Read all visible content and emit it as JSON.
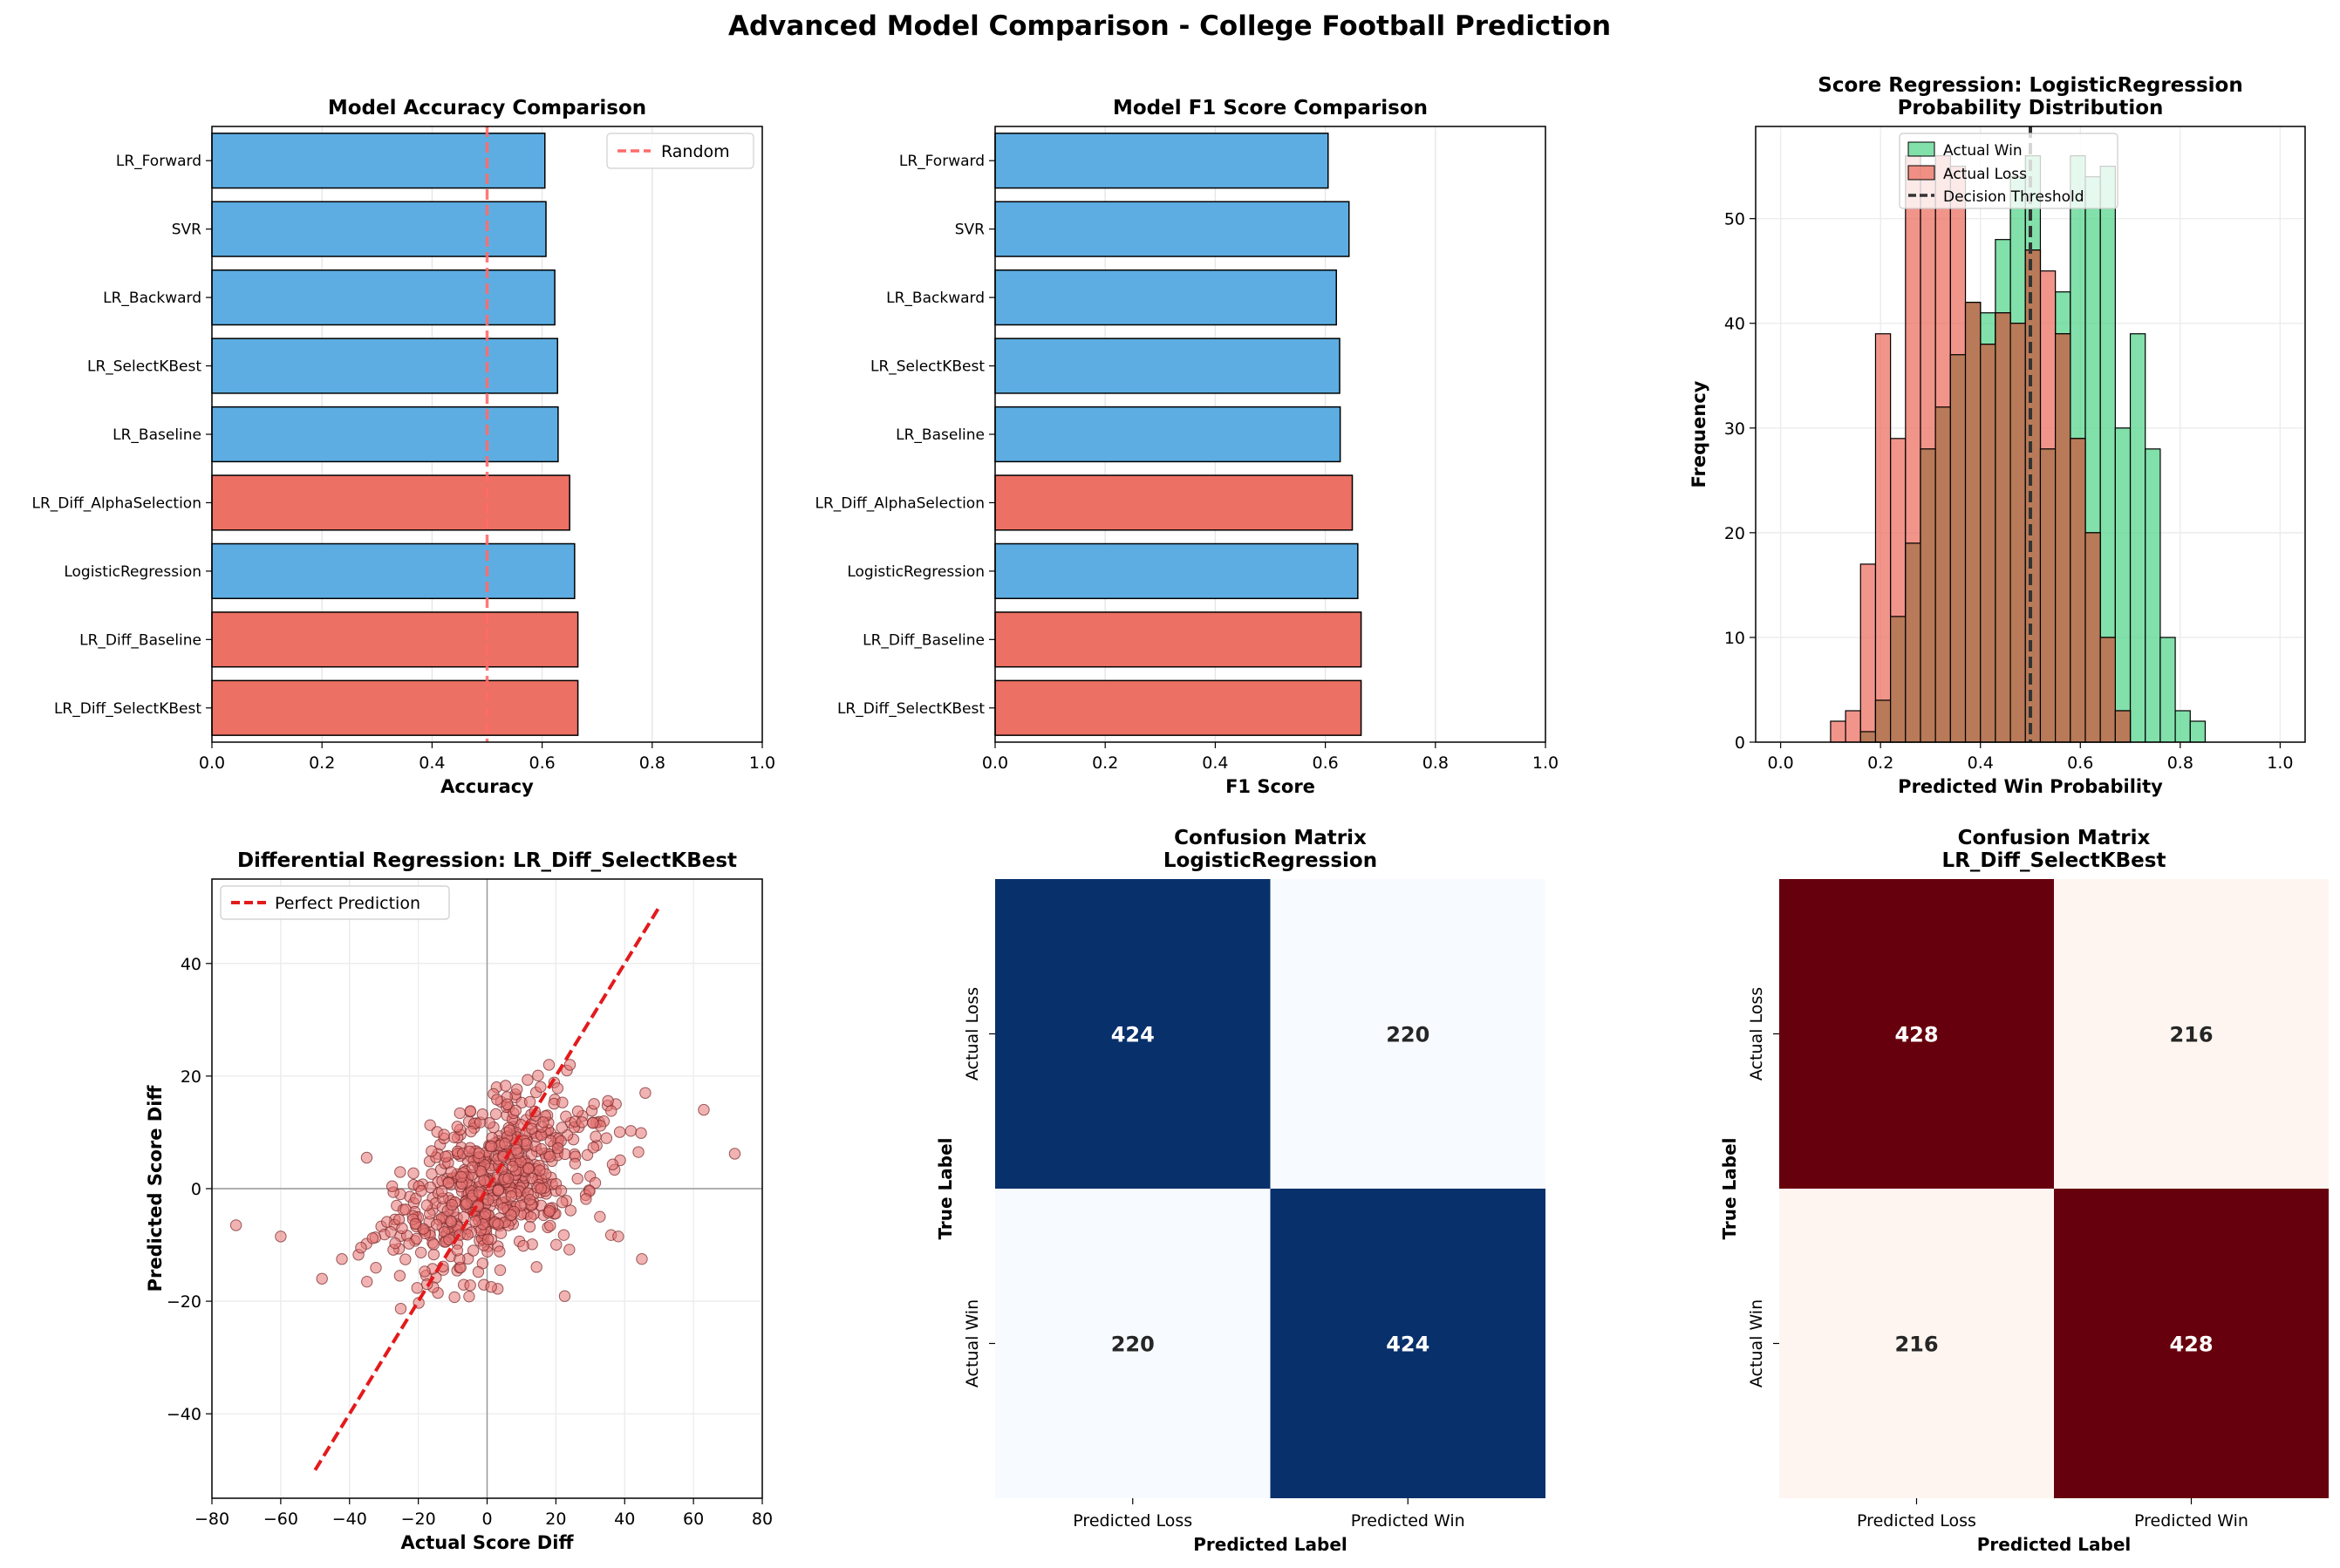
{
  "figure_title": "Advanced Model Comparison - College Football Prediction",
  "colors": {
    "lr_bar": "#5DADE2",
    "diff_bar": "#EC7063",
    "random_line": "#FF6B6B",
    "actual_win": "#58D68D",
    "actual_loss": "#EC7063",
    "overlap": "#B87A58",
    "scatter_point": "#E57373",
    "perfect_line": "#E31A1C",
    "blues_dark": "#08306B",
    "blues_light": "#F7FBFF",
    "reds_dark": "#67000D",
    "reds_light": "#FFF5F0"
  },
  "chart_data": [
    {
      "id": "accuracy",
      "type": "bar",
      "orientation": "horizontal",
      "title": "Model Accuracy Comparison",
      "xlabel": "Accuracy",
      "ylabel": "",
      "xlim": [
        0,
        1
      ],
      "xticks": [
        "0.0",
        "0.2",
        "0.4",
        "0.6",
        "0.8",
        "1.0"
      ],
      "grid": "x",
      "legend": {
        "position": "top-right",
        "entries": [
          "Random"
        ]
      },
      "reference_line": {
        "value": 0.5,
        "label": "Random"
      },
      "categories": [
        "LR_Forward",
        "SVR",
        "LR_Backward",
        "LR_SelectKBest",
        "LR_Baseline",
        "LR_Diff_AlphaSelection",
        "LogisticRegression",
        "LR_Diff_Baseline",
        "LR_Diff_SelectKBest"
      ],
      "values": [
        0.605,
        0.607,
        0.623,
        0.628,
        0.629,
        0.65,
        0.659,
        0.665,
        0.665
      ],
      "bar_groups": [
        "lr",
        "lr",
        "lr",
        "lr",
        "lr",
        "diff",
        "lr",
        "diff",
        "diff"
      ]
    },
    {
      "id": "f1",
      "type": "bar",
      "orientation": "horizontal",
      "title": "Model F1 Score Comparison",
      "xlabel": "F1 Score",
      "ylabel": "",
      "xlim": [
        0,
        1
      ],
      "xticks": [
        "0.0",
        "0.2",
        "0.4",
        "0.6",
        "0.8",
        "1.0"
      ],
      "grid": "x",
      "categories": [
        "LR_Forward",
        "SVR",
        "LR_Backward",
        "LR_SelectKBest",
        "LR_Baseline",
        "LR_Diff_AlphaSelection",
        "LogisticRegression",
        "LR_Diff_Baseline",
        "LR_Diff_SelectKBest"
      ],
      "values": [
        0.605,
        0.643,
        0.62,
        0.626,
        0.627,
        0.649,
        0.659,
        0.665,
        0.665
      ],
      "bar_groups": [
        "lr",
        "lr",
        "lr",
        "lr",
        "lr",
        "diff",
        "lr",
        "diff",
        "diff"
      ]
    },
    {
      "id": "hist",
      "type": "histogram",
      "title": "Score Regression: LogisticRegression",
      "subtitle": "Probability Distribution",
      "xlabel": "Predicted Win Probability",
      "ylabel": "Frequency",
      "xlim": [
        -0.05,
        1.05
      ],
      "ylim": [
        0,
        58.8
      ],
      "xticks": [
        "0.0",
        "0.2",
        "0.4",
        "0.6",
        "0.8",
        "1.0"
      ],
      "yticks": [
        "0",
        "10",
        "20",
        "30",
        "40",
        "50"
      ],
      "grid": "both",
      "legend": {
        "position": "top-center",
        "entries": [
          "Actual Win",
          "Actual Loss",
          "Decision Threshold"
        ]
      },
      "threshold": 0.5,
      "bin_start": 0.1,
      "bin_width": 0.03,
      "series": [
        {
          "name": "Actual Win",
          "values": [
            0,
            0,
            1,
            4,
            12,
            19,
            28,
            32,
            37,
            42,
            41,
            48,
            54,
            56,
            28,
            43,
            56,
            54,
            55,
            30,
            39,
            28,
            10,
            3,
            2
          ]
        },
        {
          "name": "Actual Loss",
          "values": [
            2,
            3,
            17,
            39,
            29,
            56,
            55,
            56,
            55,
            42,
            38,
            41,
            40,
            47,
            45,
            39,
            29,
            20,
            10,
            3,
            0,
            0,
            0,
            0,
            0
          ]
        }
      ]
    },
    {
      "id": "scatter",
      "type": "scatter",
      "title": "Differential Regression: LR_Diff_SelectKBest",
      "xlabel": "Actual Score Diff",
      "ylabel": "Predicted Score Diff",
      "xlim": [
        -80,
        80
      ],
      "ylim": [
        -55,
        55
      ],
      "xticks": [
        "−80",
        "−60",
        "−40",
        "−20",
        "0",
        "20",
        "40",
        "60",
        "80"
      ],
      "yticks": [
        "−40",
        "−20",
        "0",
        "20",
        "40"
      ],
      "grid": "both",
      "legend": {
        "position": "top-left",
        "entries": [
          "Perfect Prediction"
        ]
      },
      "reference_line": {
        "from": [
          -50,
          -50
        ],
        "to": [
          50,
          50
        ],
        "label": "Perfect Prediction"
      },
      "point_count": 644,
      "seed": 7,
      "outliers": [
        [
          -73,
          -6.5
        ],
        [
          -60,
          -8.5
        ],
        [
          72,
          6.2
        ],
        [
          63,
          14
        ],
        [
          46,
          17
        ],
        [
          45,
          -12.5
        ],
        [
          -48,
          -16
        ],
        [
          44,
          6.5
        ],
        [
          -35,
          5.5
        ],
        [
          18,
          22
        ]
      ]
    },
    {
      "id": "cm_lr",
      "type": "heatmap",
      "title": "Confusion Matrix",
      "subtitle": "LogisticRegression",
      "xlabel": "Predicted Label",
      "ylabel": "True Label",
      "xticklabels": [
        "Predicted Loss",
        "Predicted Win"
      ],
      "yticklabels": [
        "Actual Loss",
        "Actual Win"
      ],
      "colormap": "blues",
      "matrix": [
        [
          424,
          220
        ],
        [
          220,
          424
        ]
      ],
      "labels": [
        [
          "424",
          "220"
        ],
        [
          "220",
          "424"
        ]
      ]
    },
    {
      "id": "cm_diff",
      "type": "heatmap",
      "title": "Confusion Matrix",
      "subtitle": "LR_Diff_SelectKBest",
      "xlabel": "Predicted Label",
      "ylabel": "True Label",
      "xticklabels": [
        "Predicted Loss",
        "Predicted Win"
      ],
      "yticklabels": [
        "Actual Loss",
        "Actual Win"
      ],
      "colormap": "reds",
      "matrix": [
        [
          428,
          216
        ],
        [
          216,
          428
        ]
      ],
      "labels": [
        [
          "428",
          "216"
        ],
        [
          "216",
          "428"
        ]
      ]
    }
  ]
}
